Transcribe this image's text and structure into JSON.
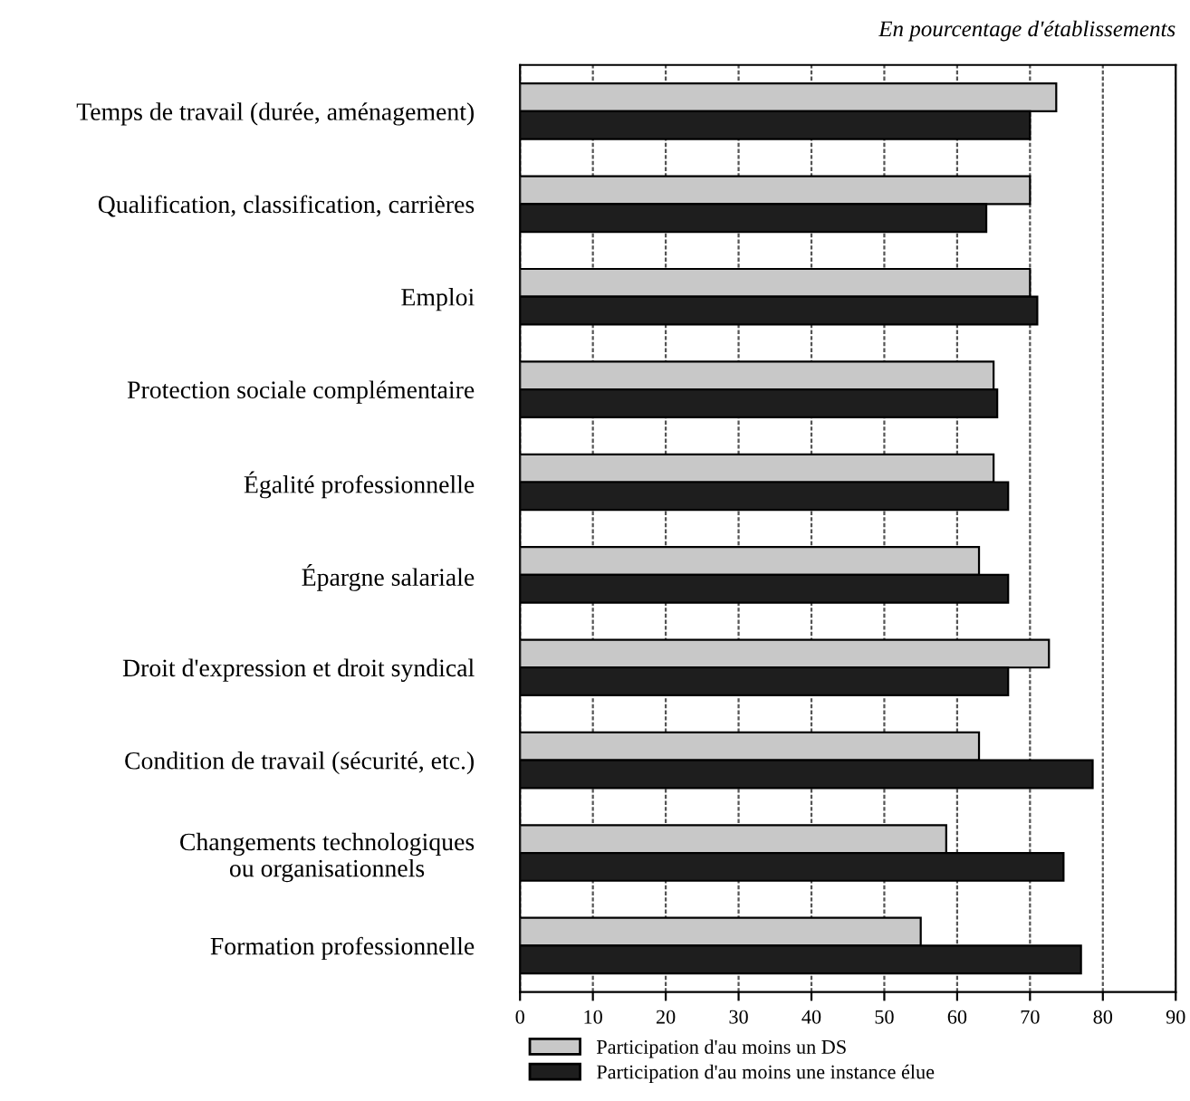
{
  "chart_data": {
    "type": "bar",
    "orientation": "horizontal",
    "subtitle": "En pourcentage d'établissements",
    "categories": [
      "Temps de travail (durée, aménagement)",
      "Qualification, classification, carrières",
      "Emploi",
      "Protection sociale complémentaire",
      "Égalité professionnelle",
      "Épargne salariale",
      "Droit d'expression et droit syndical",
      "Condition de travail (sécurité, etc.)",
      "Changements technologiques\nou organisationnels",
      "Formation professionnelle"
    ],
    "series": [
      {
        "name": "Participation d'au moins un DS",
        "color": "#c8c8c8",
        "values": [
          73.6,
          70,
          70,
          65,
          65,
          63,
          72.6,
          63,
          58.5,
          55
        ]
      },
      {
        "name": "Participation d'au moins une instance élue",
        "color": "#1e1e1e",
        "values": [
          70,
          64,
          71,
          65.5,
          67,
          67,
          67,
          78.6,
          74.6,
          77
        ]
      }
    ],
    "xlim": [
      0,
      90
    ],
    "xticks": [
      0,
      10,
      20,
      30,
      40,
      50,
      60,
      70,
      80,
      90
    ],
    "grid": "x",
    "legend": "bottom left"
  }
}
